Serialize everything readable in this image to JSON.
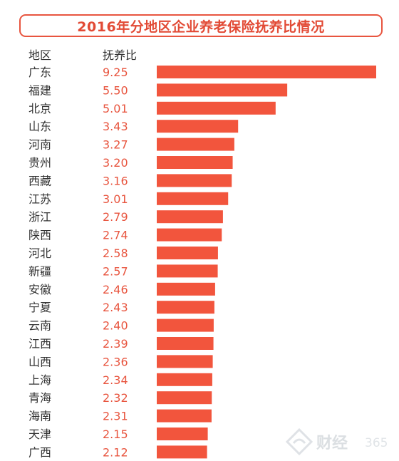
{
  "title": "2016年分地区企业养老保险抚养比情况",
  "header": {
    "region": "地区",
    "ratio": "抚养比"
  },
  "watermark": {
    "text": "财经",
    "number": "365"
  },
  "colors": {
    "accent": "#f2553d",
    "title": "#e24a35"
  },
  "chart_data": {
    "type": "bar",
    "orientation": "horizontal",
    "title": "2016年分地区企业养老保险抚养比情况",
    "categories": [
      "广东",
      "福建",
      "北京",
      "山东",
      "河南",
      "贵州",
      "西藏",
      "江苏",
      "浙江",
      "陕西",
      "河北",
      "新疆",
      "安徽",
      "宁夏",
      "云南",
      "江西",
      "山西",
      "上海",
      "青海",
      "海南",
      "天津",
      "广西"
    ],
    "values": [
      9.25,
      5.5,
      5.01,
      3.43,
      3.27,
      3.2,
      3.16,
      3.01,
      2.79,
      2.74,
      2.58,
      2.57,
      2.46,
      2.43,
      2.4,
      2.39,
      2.36,
      2.34,
      2.32,
      2.31,
      2.15,
      2.12
    ],
    "value_labels": [
      "9.25",
      "5.50",
      "5.01",
      "3.43",
      "3.27",
      "3.20",
      "3.16",
      "3.01",
      "2.79",
      "2.74",
      "2.58",
      "2.57",
      "2.46",
      "2.43",
      "2.40",
      "2.39",
      "2.36",
      "2.34",
      "2.32",
      "2.31",
      "2.15",
      "2.12"
    ],
    "xlim": [
      0,
      9.25
    ],
    "grid": false,
    "legend": "none"
  }
}
